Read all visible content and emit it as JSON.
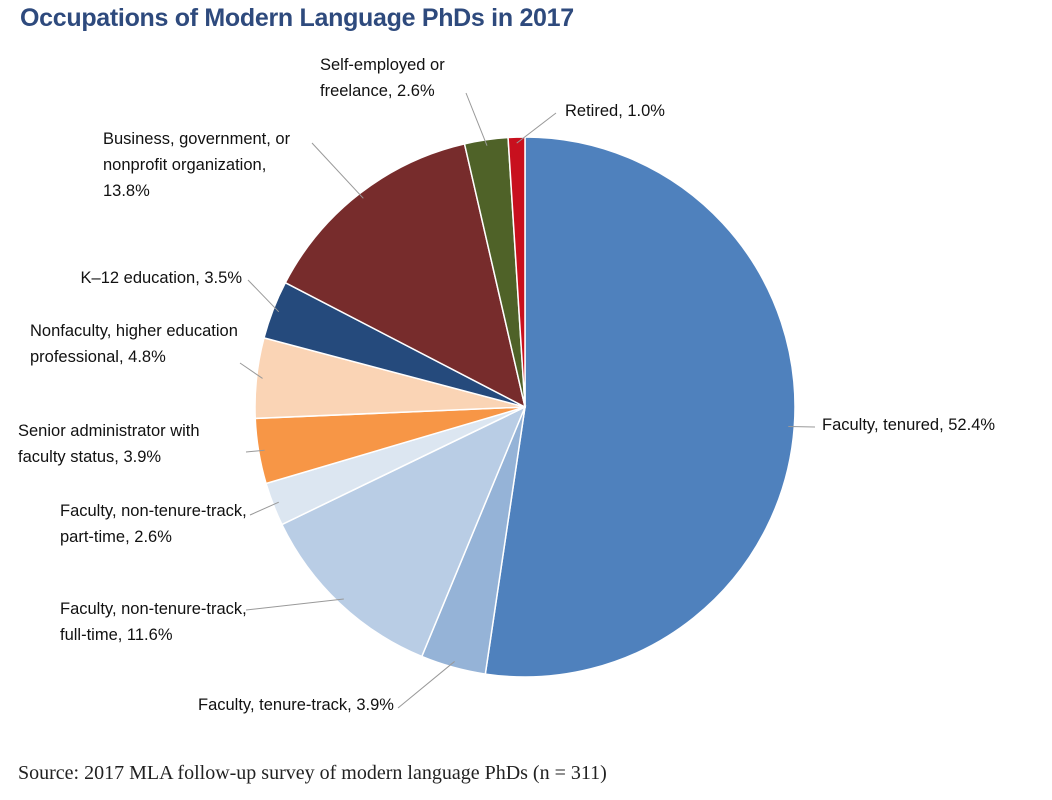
{
  "chart_data": {
    "type": "pie",
    "title": "Occupations of Modern Language PhDs in 2017",
    "source": "Source: 2017 MLA follow-up survey of modern language PhDs (n = 311)",
    "categories": [
      "Faculty, tenured, 52.4%",
      "Faculty, tenure-track, 3.9%",
      "Faculty, non-tenure-track, full-time, 11.6%",
      "Faculty, non-tenure-track, part-time, 2.6%",
      "Senior administrator with faculty status, 3.9%",
      "Nonfaculty, higher education professional, 4.8%",
      "K–12 education, 3.5%",
      "Business, government, or nonprofit organization, 13.8%",
      "Self-employed or freelance, 2.6%",
      "Retired, 1.0%"
    ],
    "values": [
      52.4,
      3.9,
      11.6,
      2.6,
      3.9,
      4.8,
      3.5,
      13.8,
      2.6,
      1.0
    ],
    "colors": [
      "#4f81bd",
      "#95b3d7",
      "#b9cde5",
      "#dce6f1",
      "#f79646",
      "#fad4b5",
      "#254a7c",
      "#772c2c",
      "#4f6228",
      "#c8101e"
    ]
  }
}
